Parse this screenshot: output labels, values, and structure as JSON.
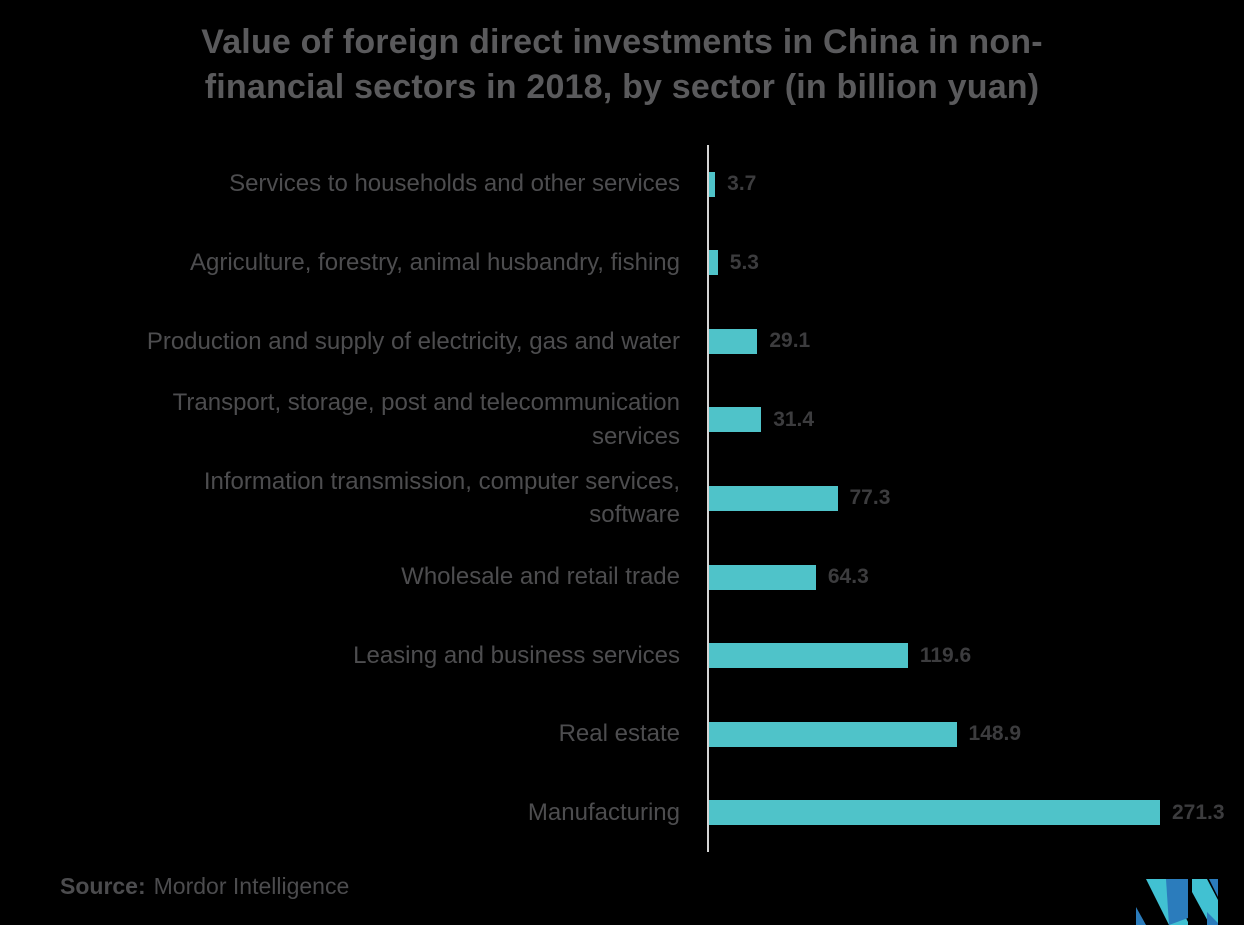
{
  "title": "Value of foreign direct investments in China in non-financial sectors in 2018, by sector (in billion yuan)",
  "source": {
    "label": "Source:",
    "name": "Mordor Intelligence"
  },
  "logo": {
    "name": "mordor-intelligence-logo",
    "color_blue": "#2b7cbc",
    "color_teal": "#41c1d2"
  },
  "colors": {
    "background": "#000000",
    "bar": "#4fc3c9",
    "axis": "#d5d5d5",
    "title_text": "#5a5a5c",
    "category_text": "#4d4d4f",
    "value_text": "#3c3c3e"
  },
  "chart_data": {
    "type": "bar",
    "orientation": "horizontal",
    "title": "Value of foreign direct investments in China in non-financial sectors in 2018, by sector (in billion yuan)",
    "xlabel": "",
    "ylabel": "",
    "unit": "billion yuan",
    "xlim": [
      0,
      300
    ],
    "grid": false,
    "legend": false,
    "value_labels_shown": true,
    "categories": [
      "Services to households and other services",
      "Agriculture, forestry, animal husbandry, fishing",
      "Production and supply of electricity, gas and water",
      "Transport, storage, post and telecommunication services",
      "Information transmission, computer services, software",
      "Wholesale and retail trade",
      "Leasing and business services",
      "Real estate",
      "Manufacturing"
    ],
    "values": [
      3.7,
      5.3,
      29.1,
      31.4,
      77.3,
      64.3,
      119.6,
      148.9,
      271.3
    ]
  }
}
